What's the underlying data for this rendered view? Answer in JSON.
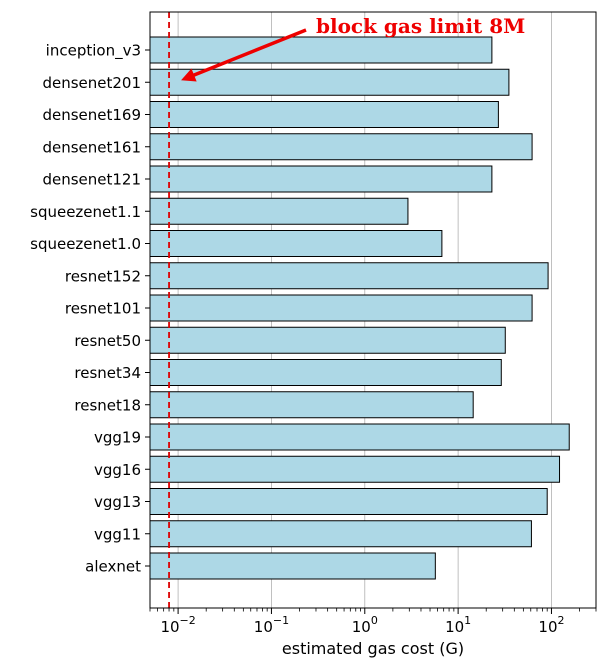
{
  "chart_data": {
    "type": "bar",
    "orientation": "horizontal",
    "xscale": "log",
    "xlabel": "estimated gas cost (G)",
    "ylabel": "",
    "xlim": [
      0.005,
      300
    ],
    "grid": "x",
    "bar_color": "#add8e6",
    "bar_edge_color": "#000000",
    "categories": [
      "inception_v3",
      "densenet201",
      "densenet169",
      "densenet161",
      "densenet121",
      "squeezenet1.1",
      "squeezenet1.0",
      "resnet152",
      "resnet101",
      "resnet50",
      "resnet34",
      "resnet18",
      "vgg19",
      "vgg16",
      "vgg13",
      "vgg11",
      "alexnet"
    ],
    "values": [
      23,
      35,
      27,
      62,
      23,
      2.9,
      6.7,
      92,
      62,
      32,
      29,
      14.5,
      155,
      122,
      90,
      61,
      5.7
    ],
    "xticks": [
      {
        "value": 0.01,
        "base": "10",
        "exp": "−2"
      },
      {
        "value": 0.1,
        "base": "10",
        "exp": "−1"
      },
      {
        "value": 1,
        "base": "10",
        "exp": "0"
      },
      {
        "value": 10,
        "base": "10",
        "exp": "1"
      },
      {
        "value": 100,
        "base": "10",
        "exp": "2"
      }
    ],
    "reference_line": {
      "value": 0.008,
      "color": "#dd0000",
      "style": "dashed"
    },
    "annotation": {
      "text": "block gas limit 8M",
      "color": "#ee0000",
      "points_to": "densenet201"
    }
  }
}
